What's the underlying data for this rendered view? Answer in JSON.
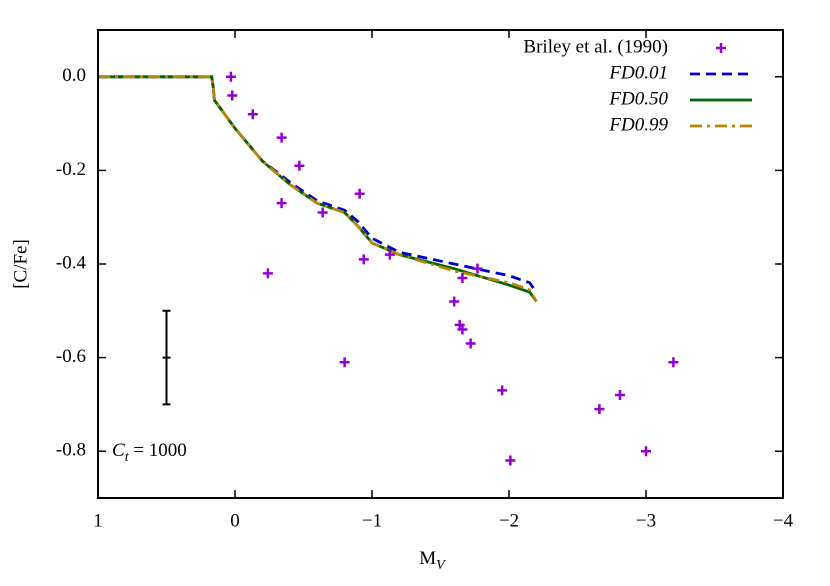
{
  "chart_data": {
    "type": "scatter-line",
    "x_label": {
      "base": "M",
      "sub": "V"
    },
    "y_label": "[C/Fe]",
    "xlim": [
      1,
      -4
    ],
    "ylim": [
      -0.9,
      0.1
    ],
    "xticks": [
      1,
      0,
      {
        "value": -1,
        "label": "−1"
      },
      {
        "value": -2,
        "label": "−2"
      },
      {
        "value": -3,
        "label": "−3"
      },
      {
        "value": -4,
        "label": "−4"
      }
    ],
    "yticks": [
      {
        "value": 0,
        "label": "0.0"
      },
      -0.2,
      -0.4,
      -0.6,
      -0.8
    ],
    "legend": "top-right",
    "scatter": {
      "name": "Briley et al. (1990)",
      "color": "#9400d3",
      "x": [
        0.03,
        0.02,
        -0.13,
        -0.34,
        -0.47,
        -0.34,
        -0.91,
        -0.64,
        -0.24,
        -0.94,
        -1.13,
        -1.77,
        -1.66,
        -1.6,
        -1.64,
        -1.66,
        -1.72,
        -0.8,
        -1.95,
        -2.01,
        -2.66,
        -2.81,
        -3.0,
        -3.2
      ],
      "values": [
        0.0,
        -0.04,
        -0.08,
        -0.13,
        -0.19,
        -0.27,
        -0.25,
        -0.29,
        -0.42,
        -0.39,
        -0.38,
        -0.41,
        -0.43,
        -0.48,
        -0.53,
        -0.54,
        -0.57,
        -0.61,
        -0.67,
        -0.82,
        -0.71,
        -0.68,
        -0.8,
        -0.61
      ]
    },
    "x": [
      1,
      0.17,
      0.16,
      0.15,
      0.1,
      0,
      -0.2,
      -0.4,
      -0.6,
      -0.8,
      -0.9,
      -1.0,
      -1.2,
      -1.6,
      -2.0,
      -2.15,
      -2.2
    ],
    "series": [
      {
        "name": "FD0.01",
        "color": "#0000cc",
        "dash": "dashed",
        "values": [
          0,
          0,
          -0.02,
          -0.05,
          -0.07,
          -0.11,
          -0.18,
          -0.225,
          -0.265,
          -0.285,
          -0.31,
          -0.345,
          -0.375,
          -0.4,
          -0.425,
          -0.44,
          -0.46
        ]
      },
      {
        "name": "FD0.50",
        "color": "#006400",
        "dash": "solid",
        "values": [
          0,
          0,
          -0.02,
          -0.05,
          -0.07,
          -0.11,
          -0.18,
          -0.23,
          -0.27,
          -0.29,
          -0.32,
          -0.355,
          -0.38,
          -0.41,
          -0.445,
          -0.46,
          -0.48
        ]
      },
      {
        "name": "FD0.99",
        "color": "#b8860b",
        "dash": "dashdot",
        "values": [
          0,
          0,
          -0.02,
          -0.05,
          -0.07,
          -0.11,
          -0.18,
          -0.23,
          -0.27,
          -0.29,
          -0.32,
          -0.355,
          -0.38,
          -0.415,
          -0.44,
          -0.455,
          -0.48
        ]
      }
    ],
    "errorbar": {
      "x": 0.5,
      "y": -0.6,
      "err": 0.1
    },
    "annotation": {
      "base": "C",
      "sub": "t",
      "rest": " = 1000"
    }
  }
}
